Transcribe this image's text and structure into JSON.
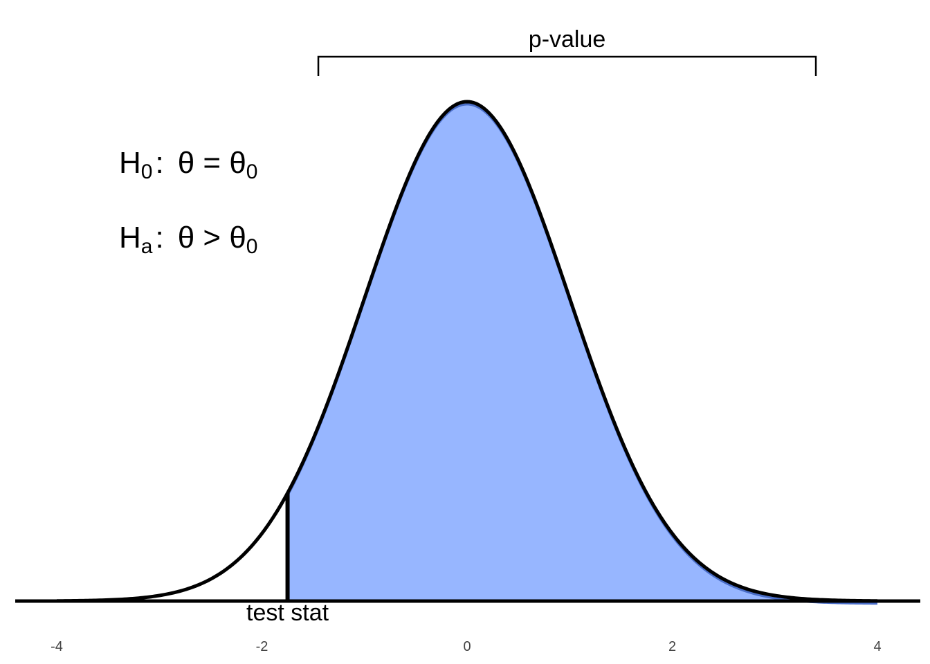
{
  "chart_data": {
    "type": "area",
    "distribution": "standard-normal",
    "mean": 0,
    "sd": 1,
    "xlim": [
      -4,
      4
    ],
    "x_ticks": [
      "-4",
      "-2",
      "0",
      "2",
      "4"
    ],
    "x_tick_values": [
      -4,
      -2,
      0,
      2,
      4
    ],
    "test_stat": -1.75,
    "shaded_region": [
      -1.75,
      4
    ],
    "bracket_range": [
      -1.45,
      3.4
    ],
    "fill_color": "#97b6ff",
    "fill_edge_color": "#4a6ec8",
    "curve_color": "#000000",
    "grid": false,
    "annotations": {
      "bracket_label": "p-value",
      "test_stat_label": "test stat"
    },
    "hypotheses": {
      "null": {
        "main": "H",
        "sub": "0",
        "colon": ":",
        "expr": "θ = θ",
        "expr_sub": "0"
      },
      "alt": {
        "main": "H",
        "sub": "a",
        "colon": ":",
        "expr": "θ > θ",
        "expr_sub": "0"
      }
    }
  }
}
